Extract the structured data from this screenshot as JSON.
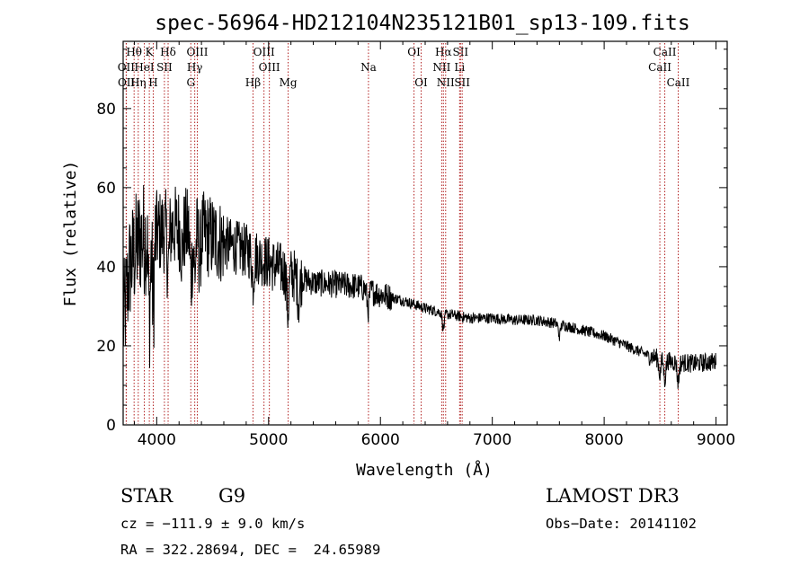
{
  "chart_data": {
    "type": "line",
    "title": "spec-56964-HD212104N235121B01_sp13-109.fits",
    "xlabel": "Wavelength (Å)",
    "ylabel": "Flux (relative)",
    "xlim": [
      3700,
      9100
    ],
    "ylim": [
      0,
      97
    ],
    "x_ticks": [
      4000,
      5000,
      6000,
      7000,
      8000,
      9000
    ],
    "y_ticks": [
      0,
      20,
      40,
      60,
      80
    ],
    "x_tick_labels": [
      "4000",
      "5000",
      "6000",
      "7000",
      "8000",
      "9000"
    ],
    "y_tick_labels": [
      "0",
      "20",
      "40",
      "60",
      "80"
    ],
    "line_color": "#000000",
    "marker_color": "#b22222",
    "continuum": [
      [
        3700,
        25
      ],
      [
        3760,
        40
      ],
      [
        3850,
        47
      ],
      [
        3950,
        48
      ],
      [
        4050,
        49
      ],
      [
        4150,
        50
      ],
      [
        4300,
        49
      ],
      [
        4450,
        48
      ],
      [
        4600,
        46
      ],
      [
        4800,
        44
      ],
      [
        5000,
        41
      ],
      [
        5200,
        38
      ],
      [
        5400,
        36
      ],
      [
        5600,
        35.5
      ],
      [
        5800,
        35
      ],
      [
        6000,
        33
      ],
      [
        6200,
        31.5
      ],
      [
        6400,
        29.5
      ],
      [
        6600,
        28
      ],
      [
        6800,
        27
      ],
      [
        7000,
        27
      ],
      [
        7200,
        26.5
      ],
      [
        7400,
        26.5
      ],
      [
        7600,
        25.5
      ],
      [
        7800,
        24
      ],
      [
        8000,
        22.5
      ],
      [
        8200,
        20
      ],
      [
        8400,
        17.5
      ],
      [
        8600,
        16
      ],
      [
        8800,
        15.5
      ],
      [
        9000,
        16
      ]
    ],
    "absorption_features": [
      [
        3934,
        20
      ],
      [
        3969,
        18
      ],
      [
        4102,
        10
      ],
      [
        4227,
        6
      ],
      [
        4307,
        12
      ],
      [
        4340,
        10
      ],
      [
        4384,
        6
      ],
      [
        4861,
        7
      ],
      [
        5172,
        10
      ],
      [
        5270,
        6
      ],
      [
        5890,
        5
      ],
      [
        6563,
        4
      ],
      [
        7600,
        3
      ],
      [
        8498,
        4
      ],
      [
        8542,
        5
      ],
      [
        8662,
        5
      ]
    ],
    "line_markers": [
      {
        "label": "Hθ",
        "x": 3798,
        "row": 0
      },
      {
        "label": "K",
        "x": 3934,
        "row": 0
      },
      {
        "label": "Hδ",
        "x": 4102,
        "row": 0
      },
      {
        "label": "OII",
        "x": 3727,
        "row": 1
      },
      {
        "label": "HeI",
        "x": 3889,
        "row": 1
      },
      {
        "label": "SII",
        "x": 4069,
        "row": 1
      },
      {
        "label": "OIII",
        "x": 4363,
        "row": 0
      },
      {
        "label": "Hγ",
        "x": 4340,
        "row": 1
      },
      {
        "label": "G",
        "x": 4305,
        "row": 2
      },
      {
        "label": "OIII",
        "x": 4959,
        "row": 0
      },
      {
        "label": "OIII",
        "x": 5007,
        "row": 1
      },
      {
        "label": "Hβ",
        "x": 4861,
        "row": 2
      },
      {
        "label": "Mg",
        "x": 5175,
        "row": 2
      },
      {
        "label": "OII",
        "x": 3729,
        "row": 2
      },
      {
        "label": "Hη",
        "x": 3835,
        "row": 2
      },
      {
        "label": "H",
        "x": 3969,
        "row": 2
      },
      {
        "label": "Na",
        "x": 5893,
        "row": 1
      },
      {
        "label": "OI",
        "x": 6300,
        "row": 0
      },
      {
        "label": "OI",
        "x": 6364,
        "row": 2
      },
      {
        "label": "Hα",
        "x": 6563,
        "row": 0
      },
      {
        "label": "SII",
        "x": 6716,
        "row": 0
      },
      {
        "label": "NII",
        "x": 6548,
        "row": 1
      },
      {
        "label": "Li",
        "x": 6708,
        "row": 1
      },
      {
        "label": "NII",
        "x": 6583,
        "row": 2
      },
      {
        "label": "SII",
        "x": 6731,
        "row": 2
      },
      {
        "label": "CaII",
        "x": 8542,
        "row": 0
      },
      {
        "label": "CaII",
        "x": 8498,
        "row": 1
      },
      {
        "label": "CaII",
        "x": 8662,
        "row": 2
      }
    ]
  },
  "info": {
    "object_class": "STAR",
    "subclass": "G9",
    "survey": "LAMOST DR3",
    "cz": "cz = −111.9 ± 9.0 km/s",
    "obs_date": "Obs−Date: 20141102",
    "coords": "RA = 322.28694, DEC =  24.65989"
  }
}
